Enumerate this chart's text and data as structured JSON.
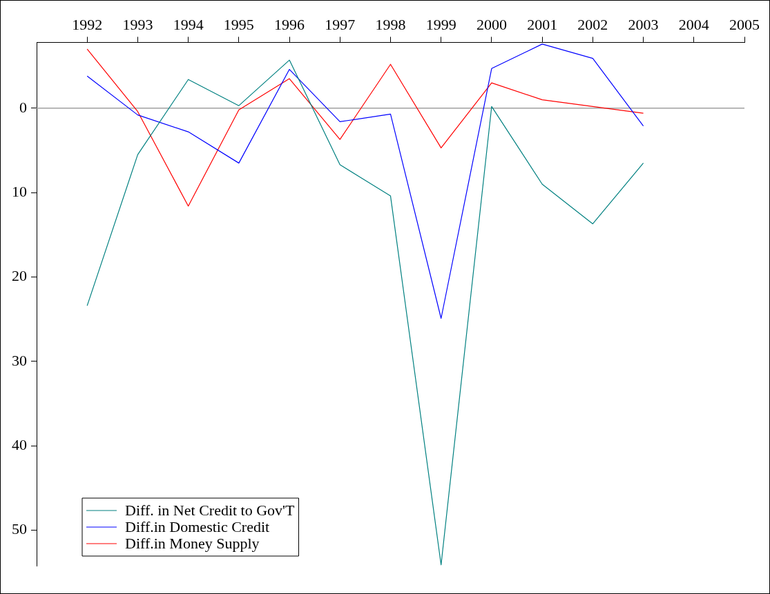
{
  "chart_data": {
    "type": "line",
    "x": [
      1992,
      1993,
      1994,
      1995,
      1996,
      1997,
      1998,
      1999,
      2000,
      2001,
      2002,
      2003
    ],
    "series": [
      {
        "name": "Diff. in Net Credit to Gov'T",
        "color": "#008080",
        "values": [
          23.4,
          5.5,
          -3.4,
          -0.3,
          -5.7,
          6.7,
          10.4,
          54.1,
          -0.2,
          9.0,
          13.7,
          6.5
        ]
      },
      {
        "name": "Diff.in Domestic Credit",
        "color": "#0000ff",
        "values": [
          -3.8,
          0.8,
          2.8,
          6.5,
          -4.6,
          1.6,
          0.7,
          24.9,
          -4.7,
          -7.6,
          -5.9,
          2.1
        ]
      },
      {
        "name": "Diff.in Money Supply",
        "color": "#ff0000",
        "values": [
          -7.0,
          0.4,
          11.6,
          0.2,
          -3.5,
          3.7,
          -5.2,
          4.7,
          -3.0,
          -1.0,
          -0.2,
          0.6
        ]
      }
    ],
    "xlim": [
      1991,
      2005
    ],
    "xticks": [
      1992,
      1993,
      1994,
      1995,
      1996,
      1997,
      1998,
      1999,
      2000,
      2001,
      2002,
      2003,
      2004,
      2005
    ],
    "ylim": [
      54.2,
      -7.8
    ],
    "yticks": [
      0,
      10,
      20,
      30,
      40,
      50
    ],
    "ref_lines": [
      {
        "axis": "y",
        "value": 0,
        "color": "#a0a0a0"
      }
    ],
    "grid": false,
    "legend": "bottom left",
    "marker": "none",
    "line_style": "solid"
  }
}
